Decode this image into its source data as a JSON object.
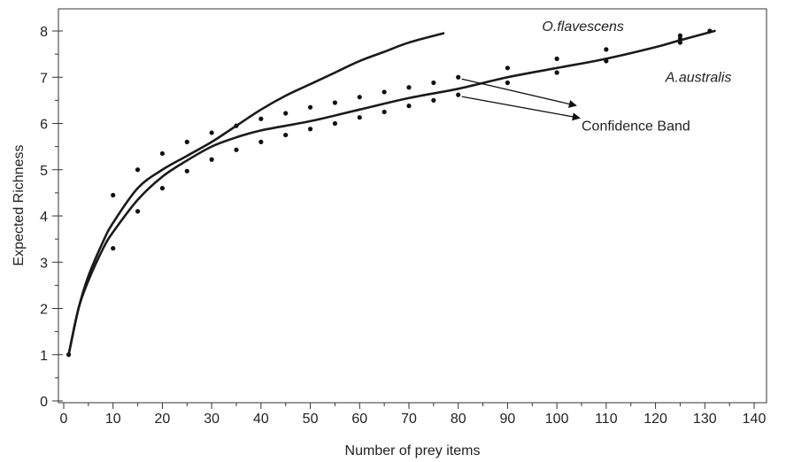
{
  "chart_data": {
    "type": "line",
    "xlabel": "Number of prey items",
    "ylabel": "Expected Richness",
    "xlim": [
      0,
      140
    ],
    "ylim": [
      0,
      8.4
    ],
    "xticks": [
      0,
      10,
      20,
      30,
      40,
      50,
      60,
      70,
      80,
      90,
      100,
      110,
      120,
      130,
      140
    ],
    "yticks": [
      0,
      1,
      2,
      3,
      4,
      5,
      6,
      7,
      8
    ],
    "grid": false,
    "series": [
      {
        "name": "O.flavescens",
        "kind": "curve",
        "x": [
          1,
          3,
          5,
          8,
          10,
          15,
          20,
          25,
          30,
          35,
          40,
          45,
          50,
          55,
          60,
          65,
          70,
          77
        ],
        "y": [
          1.0,
          2.0,
          2.7,
          3.45,
          3.85,
          4.6,
          5.0,
          5.3,
          5.6,
          5.95,
          6.3,
          6.6,
          6.85,
          7.1,
          7.35,
          7.55,
          7.75,
          7.95
        ]
      },
      {
        "name": "A.australis",
        "kind": "curve",
        "x": [
          1,
          3,
          5,
          8,
          10,
          15,
          20,
          25,
          30,
          35,
          40,
          50,
          60,
          70,
          80,
          90,
          100,
          110,
          120,
          125,
          132
        ],
        "y": [
          1.0,
          2.0,
          2.6,
          3.3,
          3.65,
          4.35,
          4.85,
          5.2,
          5.5,
          5.7,
          5.85,
          6.05,
          6.3,
          6.55,
          6.75,
          7.0,
          7.2,
          7.4,
          7.65,
          7.8,
          8.0
        ]
      },
      {
        "name": "Confidence Band",
        "kind": "points",
        "x": [
          1,
          10,
          10,
          15,
          15,
          20,
          20,
          25,
          25,
          30,
          30,
          35,
          35,
          40,
          40,
          45,
          45,
          50,
          50,
          55,
          55,
          60,
          60,
          65,
          65,
          70,
          70,
          75,
          75,
          80,
          80,
          90,
          90,
          100,
          100,
          110,
          110,
          125,
          125,
          125,
          131
        ],
        "y": [
          1.0,
          4.45,
          3.3,
          5.0,
          4.1,
          5.35,
          4.6,
          5.6,
          4.97,
          5.8,
          5.22,
          5.95,
          5.43,
          6.1,
          5.6,
          6.22,
          5.75,
          6.35,
          5.88,
          6.45,
          6.0,
          6.57,
          6.13,
          6.68,
          6.25,
          6.78,
          6.38,
          6.88,
          6.5,
          7.0,
          6.62,
          7.2,
          6.88,
          7.4,
          7.1,
          7.6,
          7.35,
          7.9,
          7.83,
          7.75,
          8.0
        ]
      }
    ],
    "annotations": [
      {
        "text": "O.flavescens",
        "italic": true,
        "x": 97,
        "y": 8.0
      },
      {
        "text": "A.australis",
        "italic": true,
        "x": 122,
        "y": 6.9
      },
      {
        "text": "Confidence Band",
        "italic": false,
        "x": 105,
        "y": 5.85,
        "arrows_to": [
          [
            80,
            7.0
          ],
          [
            80,
            6.62
          ]
        ]
      }
    ]
  }
}
